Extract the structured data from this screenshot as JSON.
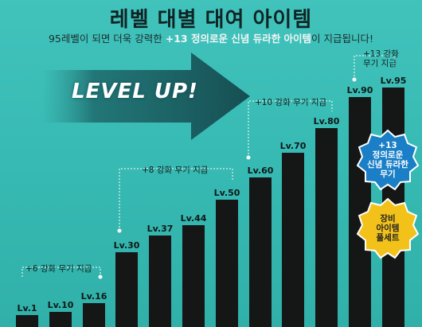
{
  "header": {
    "title": "레벨 대별  대여 아이템",
    "subtitle_before": "95레벨이 되면 더욱 강력한 ",
    "subtitle_highlight": "+13 정의로운 신념 듀라한 아이템",
    "subtitle_after": "이  지급됩니다!"
  },
  "banner": {
    "text": "LEVEL UP!"
  },
  "levels": [
    {
      "label": "Lv.1",
      "level": 1
    },
    {
      "label": "Lv.10",
      "level": 10
    },
    {
      "label": "Lv.16",
      "level": 16
    },
    {
      "label": "Lv.30",
      "level": 30
    },
    {
      "label": "Lv.37",
      "level": 37
    },
    {
      "label": "Lv.44",
      "level": 44
    },
    {
      "label": "Lv.50",
      "level": 50
    },
    {
      "label": "Lv.60",
      "level": 60
    },
    {
      "label": "Lv.70",
      "level": 70
    },
    {
      "label": "Lv.80",
      "level": 80
    },
    {
      "label": "Lv.90",
      "level": 90
    },
    {
      "label": "Lv.95",
      "level": 95
    }
  ],
  "rewards": {
    "r6": "+6 강화 무기 지급",
    "r8": "+8 강화 무기 지급",
    "r10": "+10 강화 무기 지급",
    "r13_line1": "+13 강화",
    "r13_line2": "무기 지급"
  },
  "badges": {
    "blue_line1": "+13",
    "blue_line2": "정의로운",
    "blue_line3": "신념 듀라한",
    "blue_line4": "무기",
    "yellow_line1": "장비",
    "yellow_line2": "아이템",
    "yellow_line3": "풀세트"
  },
  "colors": {
    "background": "#3bbdb6",
    "bar": "#151717",
    "arrow": "#1b5a5e",
    "badge_blue": "#1a7fc7",
    "badge_yellow": "#f2c21b",
    "highlight_text": "#f4f4f4"
  }
}
